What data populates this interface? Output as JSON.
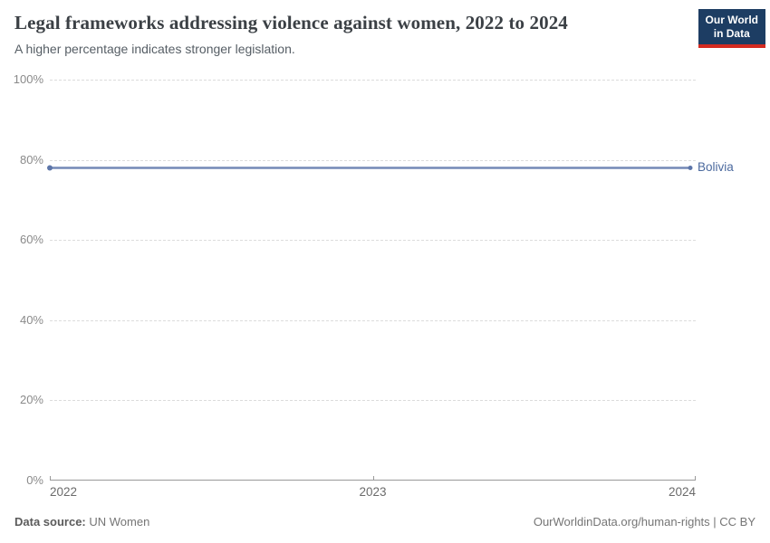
{
  "header": {
    "title": "Legal frameworks addressing violence against women, 2022 to 2024",
    "subtitle": "A higher percentage indicates stronger legislation.",
    "logo": {
      "line1": "Our World",
      "line2": "in Data"
    }
  },
  "chart_data": {
    "type": "line",
    "title": "Legal frameworks addressing violence against women, 2022 to 2024",
    "x": [
      2022,
      2023,
      2024
    ],
    "x_ticks": [
      "2022",
      "2023",
      "2024"
    ],
    "y_ticks": [
      "0%",
      "20%",
      "40%",
      "60%",
      "80%",
      "100%"
    ],
    "xlim": [
      2022,
      2024
    ],
    "ylim": [
      0,
      100
    ],
    "grid": "horizontal-dashed",
    "legend_position": "right-end-of-line",
    "series": [
      {
        "name": "Bolivia",
        "x": [
          2022,
          2023,
          2024
        ],
        "values": [
          78,
          78,
          78
        ],
        "color": "#7489b6",
        "marker_color": "#5d76a9"
      }
    ]
  },
  "colors": {
    "logo_bg": "#1d3d63",
    "logo_accent": "#d42b21",
    "gridline": "#dcdcdc",
    "axis": "#999999",
    "entity_label": "#4c6a9e"
  },
  "footer": {
    "source_label": "Data source:",
    "source_value": " UN Women",
    "attribution": "OurWorldinData.org/human-rights | CC BY"
  }
}
